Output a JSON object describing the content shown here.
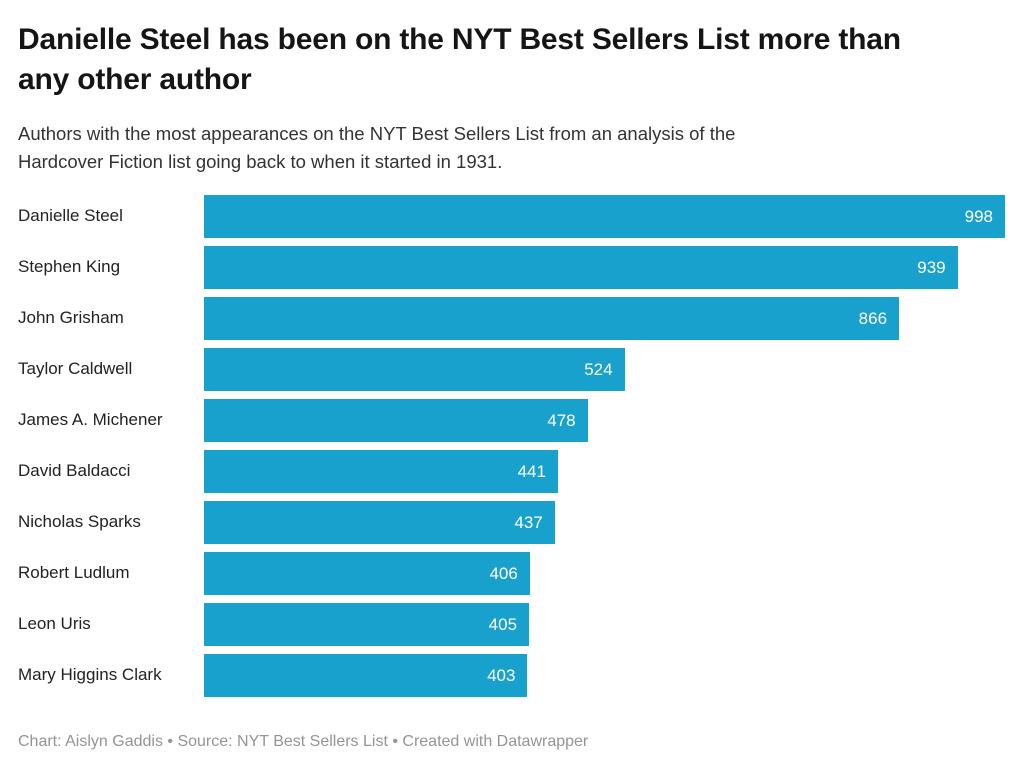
{
  "header": {
    "title": "Danielle Steel has been on the NYT Best Sellers List more than any other author",
    "subtitle": "Authors with the most appearances on the NYT Best Sellers List from an analysis of the Hardcover Fiction list going back to when it started in 1931."
  },
  "chart_data": {
    "type": "bar",
    "orientation": "horizontal",
    "title": "Danielle Steel has been on the NYT Best Sellers List more than any other author",
    "subtitle": "Authors with the most appearances on the NYT Best Sellers List from an analysis of the Hardcover Fiction list going back to when it started in 1931.",
    "categories": [
      "Danielle Steel",
      "Stephen King",
      "John Grisham",
      "Taylor Caldwell",
      "James A. Michener",
      "David Baldacci",
      "Nicholas Sparks",
      "Robert Ludlum",
      "Leon Uris",
      "Mary Higgins Clark"
    ],
    "values": [
      998,
      939,
      866,
      524,
      478,
      441,
      437,
      406,
      405,
      403
    ],
    "xlabel": "",
    "ylabel": "",
    "xlim": [
      0,
      998
    ],
    "grid": false,
    "legend": false,
    "value_label_position": "inside-end",
    "colors": {
      "bar": "#18a1cd",
      "value_label": "#ffffff",
      "category_label": "#222222"
    }
  },
  "footer": {
    "text": "Chart: Aislyn Gaddis • Source: NYT Best Sellers List • Created with Datawrapper"
  }
}
